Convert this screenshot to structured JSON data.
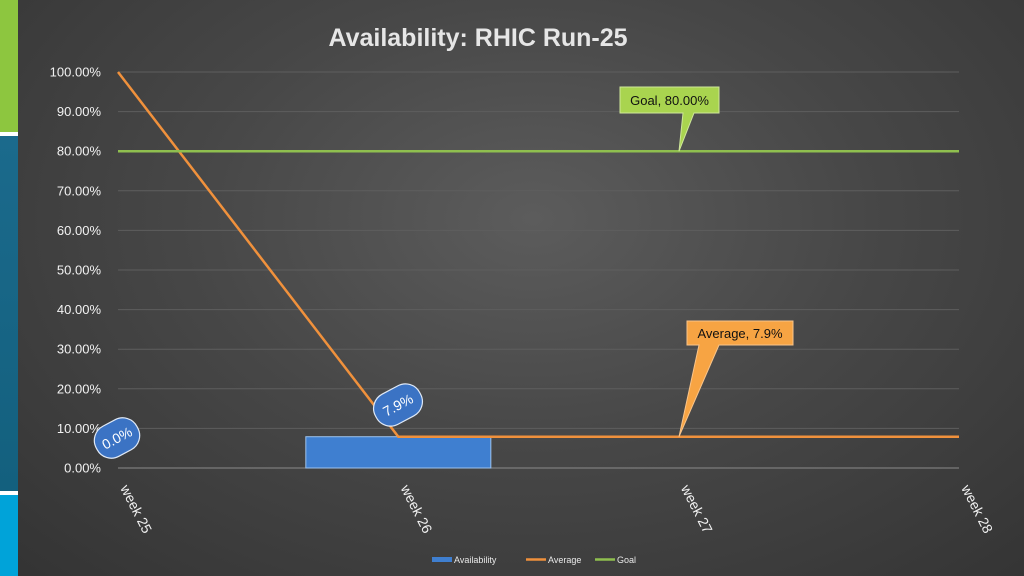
{
  "slide": {
    "accent_colors": [
      "#8dc63f",
      "#1b6a8c",
      "#13607e",
      "#00a3d9"
    ]
  },
  "chart_data": {
    "type": "bar",
    "title": "Availability: RHIC Run-25",
    "categories": [
      "week 25",
      "week 26",
      "week 27",
      "week 28"
    ],
    "y_ticks": [
      "0.00%",
      "10.00%",
      "20.00%",
      "30.00%",
      "40.00%",
      "50.00%",
      "60.00%",
      "70.00%",
      "80.00%",
      "90.00%",
      "100.00%"
    ],
    "ylim": [
      0,
      100
    ],
    "grid": true,
    "legend_position": "bottom",
    "series": [
      {
        "name": "Availability",
        "kind": "bar",
        "color": "#3f7fd0",
        "values": [
          0.0,
          7.9,
          null,
          null
        ]
      },
      {
        "name": "Average",
        "kind": "line",
        "color": "#f0913c",
        "x": [
          25,
          26,
          27,
          28
        ],
        "values": [
          100.0,
          7.9,
          7.9,
          7.9
        ]
      },
      {
        "name": "Goal",
        "kind": "line",
        "color": "#8fbf4f",
        "x": [
          25,
          28
        ],
        "values": [
          80.0,
          80.0
        ]
      }
    ],
    "data_labels": [
      {
        "id": "bar-label-week25",
        "text": "0.0%",
        "value": 0.0
      },
      {
        "id": "bar-label-week26",
        "text": "7.9%",
        "value": 7.9
      }
    ],
    "callouts": [
      {
        "id": "goal",
        "text": "Goal, 80.00%",
        "color": "#a9d44f",
        "value": 80.0
      },
      {
        "id": "average",
        "text": "Average, 7.9%",
        "color": "#f7a443",
        "value": 7.9
      }
    ]
  }
}
